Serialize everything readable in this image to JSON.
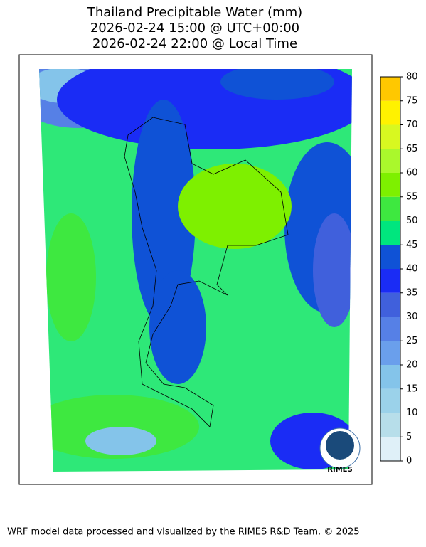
{
  "header": {
    "title_lines": [
      "Thailand Precipitable Water (mm)",
      "2026-02-24 15:00 @ UTC+00:00",
      "2026-02-24 22:00 @ Local Time"
    ]
  },
  "logo": {
    "label": "RIMES"
  },
  "colorbar": {
    "ticks": [
      0,
      5,
      10,
      15,
      20,
      25,
      30,
      35,
      40,
      45,
      50,
      55,
      60,
      65,
      70,
      75,
      80
    ],
    "colors": [
      "#dff0f8",
      "#b7deea",
      "#9bd2ea",
      "#84c4ea",
      "#6a9fec",
      "#5680e6",
      "#4060dc",
      "#1a2cf5",
      "#0f52d6",
      "#00e67e",
      "#3ee840",
      "#7ef000",
      "#aaf82c",
      "#d8f820",
      "#fff200",
      "#ffc800"
    ]
  },
  "footer": {
    "text": "WRF model data processed and visualized by the RIMES R&D Team. © 2025"
  }
}
